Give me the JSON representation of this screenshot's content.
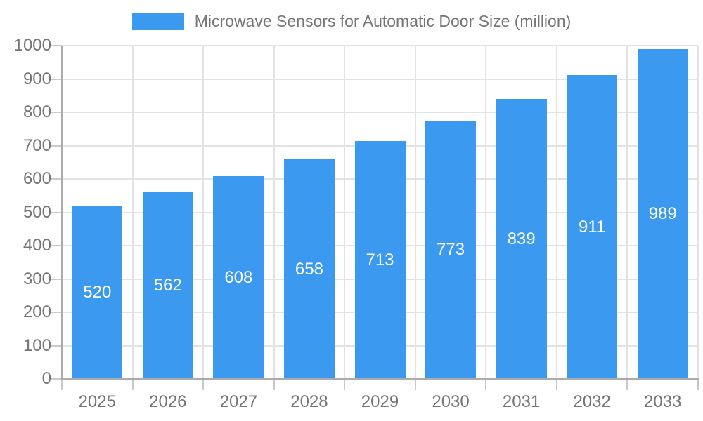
{
  "legend": {
    "label": "Microwave Sensors for Automatic Door Size (million)"
  },
  "chart_data": {
    "type": "bar",
    "title": "Microwave Sensors for Automatic Door Size (million)",
    "series_name": "Microwave Sensors for Automatic Door Size (million)",
    "categories": [
      "2025",
      "2026",
      "2027",
      "2028",
      "2029",
      "2030",
      "2031",
      "2032",
      "2033"
    ],
    "values": [
      520,
      562,
      608,
      658,
      713,
      773,
      839,
      911,
      989
    ],
    "value_labels": [
      "520",
      "562",
      "608",
      "658",
      "713",
      "773",
      "839",
      "911",
      "989"
    ],
    "xlabel": "",
    "ylabel": "",
    "ylim": [
      0,
      1000
    ],
    "ytick_interval": 100,
    "yticks": [
      0,
      100,
      200,
      300,
      400,
      500,
      600,
      700,
      800,
      900,
      1000
    ],
    "ytick_labels": [
      "0",
      "100",
      "200",
      "300",
      "400",
      "500",
      "600",
      "700",
      "800",
      "900",
      "1000"
    ],
    "grid": true,
    "legend_position": "top-center",
    "value_label_position": "inside-center",
    "colors": {
      "bar": "#3B99F0",
      "value_label": "#FFFFFF",
      "axis_text": "#757575",
      "gridline": "#E3E3E3",
      "axis_line": "#ABABAB",
      "tick": "#C9C9C9",
      "background": "#FFFFFF"
    }
  }
}
